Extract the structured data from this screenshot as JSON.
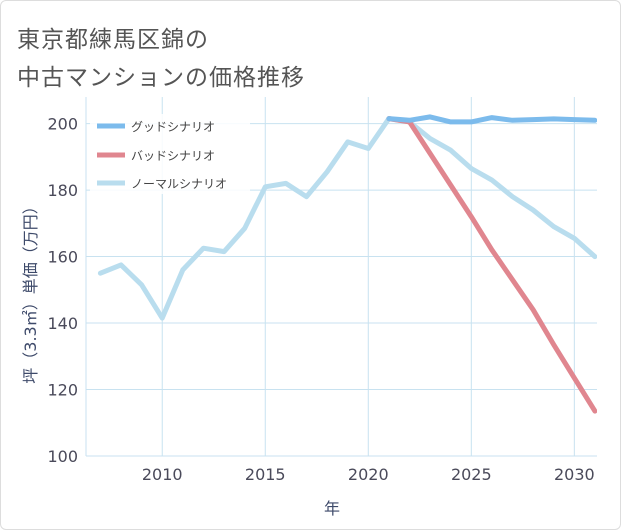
{
  "page": {
    "title_line1": "東京都練馬区錦の",
    "title_line2": "中古マンションの価格推移"
  },
  "colors": {
    "good": "#7cbbec",
    "bad": "#e0868f",
    "normal": "#b9ddee",
    "grid": "#c8e2f0",
    "axis_text": "#4a4a5a"
  },
  "chart_data": {
    "type": "line",
    "title": "東京都練馬区錦の中古マンションの価格推移",
    "xlabel": "年",
    "ylabel": "坪（3.3㎡）単価（万円）",
    "xlim": [
      2006.3,
      2031.1
    ],
    "ylim": [
      100,
      208
    ],
    "xticks": [
      2010,
      2015,
      2020,
      2025,
      2030
    ],
    "yticks": [
      100,
      120,
      140,
      160,
      180,
      200
    ],
    "xtick_labels": [
      "2010",
      "2015",
      "2020",
      "2025",
      "2030"
    ],
    "ytick_labels": [
      "100",
      "120",
      "140",
      "160",
      "180",
      "200"
    ],
    "grid": true,
    "legend_position": "top-left",
    "series": [
      {
        "key": "good",
        "name": "グッドシナリオ",
        "x": [
          2021,
          2022,
          2023,
          2024,
          2025,
          2026,
          2027,
          2028,
          2029,
          2030,
          2031
        ],
        "values": [
          201.5,
          201.0,
          202.0,
          200.5,
          200.5,
          201.8,
          201.0,
          201.2,
          201.4,
          201.2,
          201.0
        ]
      },
      {
        "key": "bad",
        "name": "バッドシナリオ",
        "x": [
          2021,
          2022,
          2023,
          2024,
          2025,
          2026,
          2027,
          2028,
          2029,
          2030,
          2031
        ],
        "values": [
          201.5,
          200.5,
          191.0,
          181.5,
          172.0,
          162.0,
          153.0,
          144.0,
          133.5,
          123.5,
          113.5
        ]
      },
      {
        "key": "normal",
        "name": "ノーマルシナリオ",
        "x": [
          2007,
          2008,
          2009,
          2010,
          2011,
          2012,
          2013,
          2014,
          2015,
          2016,
          2017,
          2018,
          2019,
          2020,
          2021,
          2022,
          2023,
          2024,
          2025,
          2026,
          2027,
          2028,
          2029,
          2030,
          2031
        ],
        "values": [
          155.0,
          157.5,
          151.5,
          141.5,
          156.0,
          162.5,
          161.5,
          168.5,
          181.0,
          182.0,
          178.0,
          185.5,
          194.5,
          192.5,
          201.5,
          200.5,
          195.5,
          192.0,
          186.5,
          183.0,
          178.0,
          174.0,
          169.0,
          165.5,
          160.0
        ]
      }
    ]
  }
}
